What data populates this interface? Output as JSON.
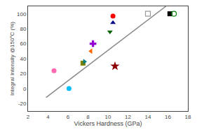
{
  "chart_data": {
    "type": "scatter",
    "xlabel": "Vickers Hardness (GPa)",
    "ylabel": "Integral Intensity @150°C (%)",
    "xlim": [
      2,
      18
    ],
    "ylim": [
      -30,
      110
    ],
    "xticks": [
      2,
      4,
      6,
      8,
      10,
      12,
      14,
      16,
      18
    ],
    "yticks": [
      -20,
      0,
      20,
      40,
      60,
      80,
      100
    ],
    "grid": false,
    "series": [
      {
        "type": "line",
        "color": "#888888",
        "line_style": "solid",
        "x": [
          3.8,
          15.8
        ],
        "values": [
          -12,
          110
        ]
      },
      {
        "type": "scatter",
        "color": "#ff69b4",
        "marker": "circle",
        "x": [
          4.6
        ],
        "values": [
          24
        ]
      },
      {
        "type": "scatter",
        "color": "#00bfff",
        "marker": "circle",
        "x": [
          6.1
        ],
        "values": [
          0
        ]
      },
      {
        "type": "scatter",
        "color": "#808000",
        "marker": "square",
        "x": [
          7.5
        ],
        "values": [
          34
        ]
      },
      {
        "type": "scatter",
        "color": "#008080",
        "marker": "triangle-right",
        "x": [
          7.65
        ],
        "values": [
          36
        ]
      },
      {
        "type": "scatter",
        "color": "#ff6600",
        "marker": "triangle-left",
        "x": [
          8.3
        ],
        "values": [
          50
        ]
      },
      {
        "type": "scatter",
        "color": "#9400d3",
        "marker": "cross",
        "x": [
          8.5
        ],
        "values": [
          60
        ]
      },
      {
        "type": "scatter",
        "color": "#ff0000",
        "marker": "circle",
        "x": [
          10.5
        ],
        "values": [
          97
        ]
      },
      {
        "type": "scatter",
        "color": "#00008b",
        "marker": "triangle-up",
        "x": [
          10.5
        ],
        "values": [
          88
        ]
      },
      {
        "type": "scatter",
        "color": "#006400",
        "marker": "triangle-down",
        "x": [
          10.2
        ],
        "values": [
          76
        ]
      },
      {
        "type": "scatter",
        "color": "#8b0000",
        "marker": "star",
        "x": [
          10.7
        ],
        "values": [
          30
        ]
      },
      {
        "type": "scatter",
        "color": "#999999",
        "marker": "square-open",
        "x": [
          14.0
        ],
        "values": [
          100
        ]
      },
      {
        "type": "scatter",
        "color": "#000000",
        "marker": "square",
        "x": [
          16.2
        ],
        "values": [
          100
        ]
      },
      {
        "type": "scatter",
        "color": "#008000",
        "marker": "circle-open",
        "x": [
          16.6
        ],
        "values": [
          100
        ]
      }
    ]
  }
}
